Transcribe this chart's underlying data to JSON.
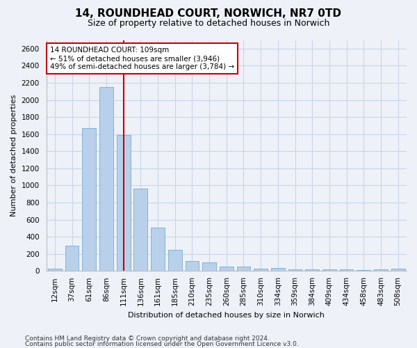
{
  "title_line1": "14, ROUNDHEAD COURT, NORWICH, NR7 0TD",
  "title_line2": "Size of property relative to detached houses in Norwich",
  "xlabel": "Distribution of detached houses by size in Norwich",
  "ylabel": "Number of detached properties",
  "bar_labels": [
    "12sqm",
    "37sqm",
    "61sqm",
    "86sqm",
    "111sqm",
    "136sqm",
    "161sqm",
    "185sqm",
    "210sqm",
    "235sqm",
    "260sqm",
    "285sqm",
    "310sqm",
    "334sqm",
    "359sqm",
    "384sqm",
    "409sqm",
    "434sqm",
    "458sqm",
    "483sqm",
    "508sqm"
  ],
  "bar_values": [
    25,
    300,
    1670,
    2150,
    1590,
    960,
    505,
    250,
    120,
    100,
    50,
    50,
    30,
    35,
    20,
    20,
    20,
    20,
    10,
    20,
    25
  ],
  "bar_color": "#b8d0ea",
  "bar_edgecolor": "#7aaad0",
  "vline_x_index": 4,
  "vline_color": "#cc0000",
  "annotation_text": "14 ROUNDHEAD COURT: 109sqm\n← 51% of detached houses are smaller (3,946)\n49% of semi-detached houses are larger (3,784) →",
  "annotation_box_color": "white",
  "annotation_box_edgecolor": "#cc0000",
  "ylim": [
    0,
    2700
  ],
  "yticks": [
    0,
    200,
    400,
    600,
    800,
    1000,
    1200,
    1400,
    1600,
    1800,
    2000,
    2200,
    2400,
    2600
  ],
  "grid_color": "#c8d4e8",
  "footer_line1": "Contains HM Land Registry data © Crown copyright and database right 2024.",
  "footer_line2": "Contains public sector information licensed under the Open Government Licence v3.0.",
  "bg_color": "#eef2f8",
  "title_fontsize": 11,
  "subtitle_fontsize": 9,
  "xlabel_fontsize": 8,
  "ylabel_fontsize": 8,
  "tick_fontsize": 7.5,
  "annot_fontsize": 7.5,
  "footer_fontsize": 6.5
}
